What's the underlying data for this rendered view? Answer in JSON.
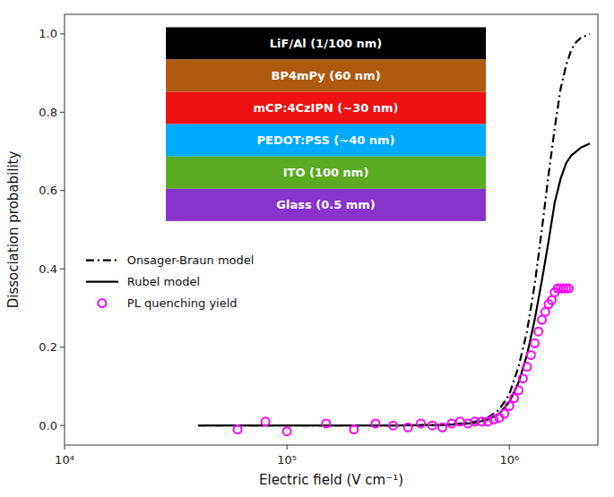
{
  "chart_data": {
    "type": "line",
    "xlabel": "Electric field (V cm⁻¹)",
    "ylabel": "Dissociation probability",
    "log": "x",
    "grid": false,
    "legend": "left",
    "xlim": [
      10000,
      2500000
    ],
    "xticks": [
      {
        "value": 10000,
        "label": "10⁴"
      },
      {
        "value": 100000,
        "label": "10⁵"
      },
      {
        "value": 1000000,
        "label": "10⁶"
      }
    ],
    "ylim": [
      -0.05,
      1.05
    ],
    "yticks": [
      {
        "value": 0,
        "label": "0.0"
      },
      0.2,
      0.4,
      0.6,
      0.8,
      {
        "value": 1,
        "label": "1.0"
      }
    ],
    "series": [
      {
        "name": "Onsager-Braun model",
        "type": "line",
        "color": "#000000",
        "line_style": "dashdot",
        "x": [
          40000,
          50000,
          60000,
          70000,
          80000,
          100000,
          150000,
          200000,
          300000,
          400000,
          500000,
          600000,
          700000,
          800000,
          900000,
          1000000,
          1100000,
          1200000,
          1300000,
          1400000,
          1500000,
          1600000,
          1700000,
          1800000,
          1900000,
          2000000,
          2100000,
          2200000,
          2300000
        ],
        "values": [
          0.0,
          0.0,
          0.0,
          0.0,
          0.0,
          0.0,
          0.0,
          0.0,
          0.0,
          0.001,
          0.002,
          0.005,
          0.01,
          0.02,
          0.04,
          0.08,
          0.15,
          0.24,
          0.36,
          0.5,
          0.64,
          0.76,
          0.86,
          0.92,
          0.96,
          0.98,
          0.99,
          0.995,
          1.0
        ]
      },
      {
        "name": "Rubel model",
        "type": "line",
        "color": "#000000",
        "line_style": "solid",
        "x": [
          40000,
          50000,
          60000,
          70000,
          80000,
          100000,
          150000,
          200000,
          300000,
          400000,
          500000,
          600000,
          700000,
          800000,
          900000,
          1000000,
          1100000,
          1200000,
          1300000,
          1400000,
          1500000,
          1600000,
          1700000,
          1800000,
          1900000,
          2000000,
          2100000,
          2200000,
          2300000
        ],
        "values": [
          0.0,
          0.0,
          0.0,
          0.0,
          0.0,
          0.0,
          0.0,
          0.0,
          0.0,
          0.0005,
          0.001,
          0.003,
          0.007,
          0.015,
          0.03,
          0.06,
          0.11,
          0.18,
          0.27,
          0.37,
          0.47,
          0.57,
          0.63,
          0.67,
          0.69,
          0.7,
          0.71,
          0.715,
          0.72
        ]
      },
      {
        "name": "PL quenching yield",
        "type": "scatter",
        "color": "#ff00ff",
        "marker": "circle",
        "x": [
          60000,
          80000,
          100000,
          150000,
          200000,
          250000,
          300000,
          350000,
          400000,
          450000,
          500000,
          550000,
          600000,
          650000,
          700000,
          750000,
          800000,
          850000,
          900000,
          950000,
          1000000,
          1050000,
          1100000,
          1150000,
          1200000,
          1250000,
          1300000,
          1350000,
          1400000,
          1450000,
          1500000,
          1550000,
          1600000,
          1650000,
          1700000,
          1750000,
          1800000,
          1850000
        ],
        "values": [
          -0.01,
          0.01,
          -0.015,
          0.005,
          -0.01,
          0.005,
          0.0,
          -0.005,
          0.005,
          0.0,
          -0.005,
          0.005,
          0.01,
          0.005,
          0.01,
          0.01,
          0.01,
          0.015,
          0.02,
          0.03,
          0.05,
          0.07,
          0.09,
          0.12,
          0.15,
          0.18,
          0.21,
          0.24,
          0.27,
          0.29,
          0.31,
          0.32,
          0.34,
          0.35,
          0.35,
          0.35,
          0.35,
          0.35
        ]
      }
    ],
    "annotations": [
      {
        "text": "LiF/Al (1/100 nm)",
        "color": "#000000"
      },
      {
        "text": "BP4mPy (60 nm)",
        "color": "#b05a10"
      },
      {
        "text": "mCP:4CzIPN (~30 nm)",
        "color": "#ee1111"
      },
      {
        "text": "PEDOT:PSS (~40 nm)",
        "color": "#00aaff"
      },
      {
        "text": "ITO (100 nm)",
        "color": "#5aaa22"
      },
      {
        "text": "Glass (0.5 mm)",
        "color": "#8833cc"
      }
    ]
  }
}
